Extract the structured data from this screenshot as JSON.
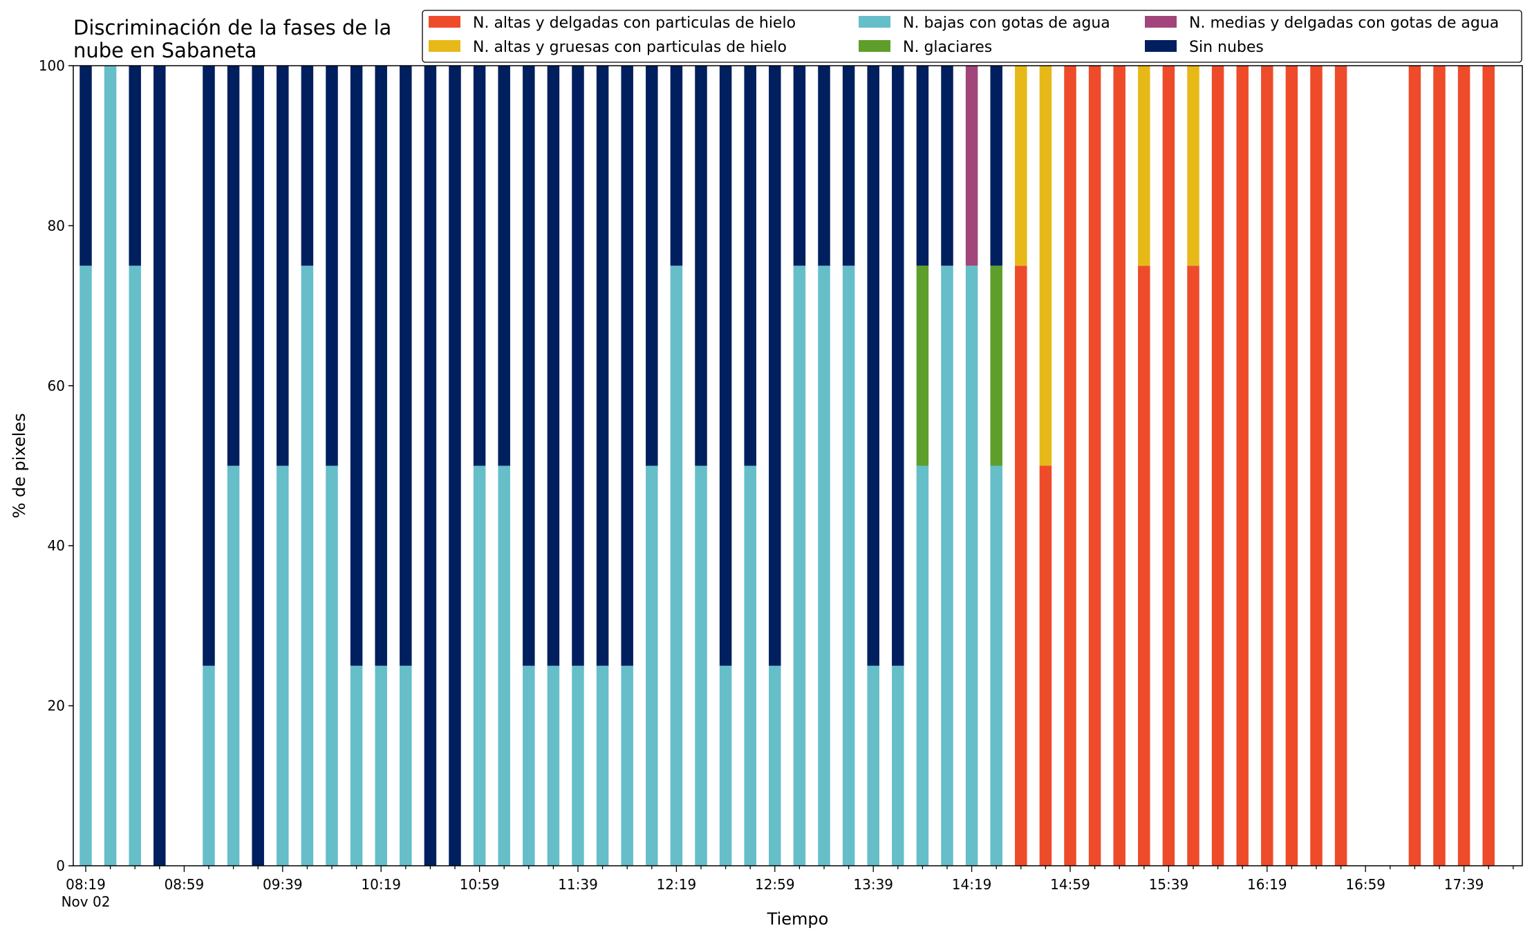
{
  "chart_data": {
    "type": "bar",
    "stacked": true,
    "title_lines": [
      "Discriminación de la fases de la",
      "nube en Sabaneta"
    ],
    "xlabel": "Tiempo",
    "ylabel": "% de pixeles",
    "ylim": [
      0,
      100
    ],
    "yticks": [
      0,
      20,
      40,
      60,
      80,
      100
    ],
    "x_start": "08:19",
    "x_step_minutes": 10,
    "x_count": 58,
    "x_date_label": "Nov 02",
    "xtick_labels": [
      {
        "index": 0,
        "label": "08:19"
      },
      {
        "index": 4,
        "label": "08:59"
      },
      {
        "index": 8,
        "label": "09:39"
      },
      {
        "index": 12,
        "label": "10:19"
      },
      {
        "index": 16,
        "label": "10:59"
      },
      {
        "index": 20,
        "label": "11:39"
      },
      {
        "index": 24,
        "label": "12:19"
      },
      {
        "index": 28,
        "label": "12:59"
      },
      {
        "index": 32,
        "label": "13:39"
      },
      {
        "index": 36,
        "label": "14:19"
      },
      {
        "index": 40,
        "label": "14:59"
      },
      {
        "index": 44,
        "label": "15:39"
      },
      {
        "index": 48,
        "label": "16:19"
      },
      {
        "index": 52,
        "label": "16:59"
      },
      {
        "index": 56,
        "label": "17:39"
      }
    ],
    "legend_position": "top-right",
    "series": [
      {
        "name": "N. altas y delgadas con particulas de hielo",
        "color": "#ee4b2b",
        "values": [
          0,
          0,
          0,
          0,
          0,
          0,
          0,
          0,
          0,
          0,
          0,
          0,
          0,
          0,
          0,
          0,
          0,
          0,
          0,
          0,
          0,
          0,
          0,
          0,
          0,
          0,
          0,
          0,
          0,
          0,
          0,
          0,
          0,
          0,
          0,
          0,
          0,
          0,
          75,
          50,
          100,
          100,
          100,
          75,
          100,
          75,
          100,
          100,
          100,
          100,
          100,
          100,
          0,
          0,
          100,
          100,
          100,
          100
        ]
      },
      {
        "name": "N. altas y gruesas con particulas de hielo",
        "color": "#e7b918",
        "values": [
          0,
          0,
          0,
          0,
          0,
          0,
          0,
          0,
          0,
          0,
          0,
          0,
          0,
          0,
          0,
          0,
          0,
          0,
          0,
          0,
          0,
          0,
          0,
          0,
          0,
          0,
          0,
          0,
          0,
          0,
          0,
          0,
          0,
          0,
          0,
          0,
          0,
          0,
          25,
          50,
          0,
          0,
          0,
          25,
          0,
          25,
          0,
          0,
          0,
          0,
          0,
          0,
          0,
          0,
          0,
          0,
          0,
          0
        ]
      },
      {
        "name": "N. bajas con gotas de agua",
        "color": "#66bec9",
        "values": [
          75,
          100,
          75,
          0,
          0,
          25,
          50,
          0,
          50,
          75,
          50,
          25,
          25,
          25,
          0,
          0,
          50,
          50,
          25,
          25,
          25,
          25,
          25,
          50,
          75,
          50,
          25,
          50,
          25,
          75,
          75,
          75,
          25,
          25,
          50,
          75,
          75,
          50,
          0,
          0,
          0,
          0,
          0,
          0,
          0,
          0,
          0,
          0,
          0,
          0,
          0,
          0,
          0,
          0,
          0,
          0,
          0,
          0
        ]
      },
      {
        "name": "N. glaciares",
        "color": "#5e9e2b",
        "values": [
          0,
          0,
          0,
          0,
          0,
          0,
          0,
          0,
          0,
          0,
          0,
          0,
          0,
          0,
          0,
          0,
          0,
          0,
          0,
          0,
          0,
          0,
          0,
          0,
          0,
          0,
          0,
          0,
          0,
          0,
          0,
          0,
          0,
          0,
          25,
          0,
          0,
          25,
          0,
          0,
          0,
          0,
          0,
          0,
          0,
          0,
          0,
          0,
          0,
          0,
          0,
          0,
          0,
          0,
          0,
          0,
          0,
          0
        ]
      },
      {
        "name": "N. medias y delgadas con gotas de agua",
        "color": "#a1457a",
        "values": [
          0,
          0,
          0,
          0,
          0,
          0,
          0,
          0,
          0,
          0,
          0,
          0,
          0,
          0,
          0,
          0,
          0,
          0,
          0,
          0,
          0,
          0,
          0,
          0,
          0,
          0,
          0,
          0,
          0,
          0,
          0,
          0,
          0,
          0,
          0,
          0,
          25,
          0,
          0,
          0,
          0,
          0,
          0,
          0,
          0,
          0,
          0,
          0,
          0,
          0,
          0,
          0,
          0,
          0,
          0,
          0,
          0,
          0
        ]
      },
      {
        "name": "Sin nubes",
        "color": "#001f5e",
        "values": [
          25,
          0,
          25,
          100,
          0,
          75,
          50,
          100,
          50,
          25,
          50,
          75,
          75,
          75,
          100,
          100,
          50,
          50,
          75,
          75,
          75,
          75,
          75,
          50,
          25,
          50,
          75,
          50,
          75,
          25,
          25,
          25,
          75,
          75,
          25,
          25,
          0,
          25,
          0,
          0,
          0,
          0,
          0,
          0,
          0,
          0,
          0,
          0,
          0,
          0,
          0,
          0,
          0,
          0,
          0,
          0,
          0,
          0
        ]
      }
    ]
  }
}
